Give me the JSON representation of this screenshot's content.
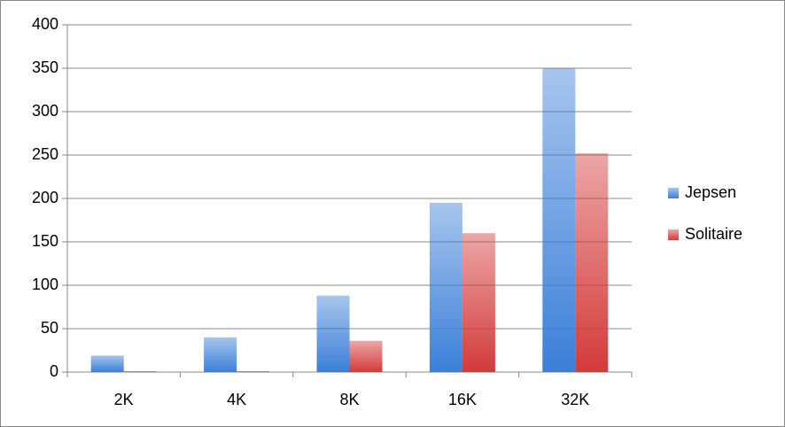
{
  "chart_data": {
    "type": "bar",
    "categories": [
      "2K",
      "4K",
      "8K",
      "16K",
      "32K"
    ],
    "series": [
      {
        "name": "Jepsen",
        "color": "#3b7fd8",
        "values": [
          19,
          40,
          88,
          195,
          350
        ]
      },
      {
        "name": "Solitaire",
        "color": "#d43a3a",
        "values": [
          1,
          1,
          36,
          160,
          252
        ]
      }
    ],
    "ylim": [
      0,
      400
    ],
    "yticks": [
      0,
      50,
      100,
      150,
      200,
      250,
      300,
      350,
      400
    ],
    "grid": true,
    "legend": "right"
  }
}
